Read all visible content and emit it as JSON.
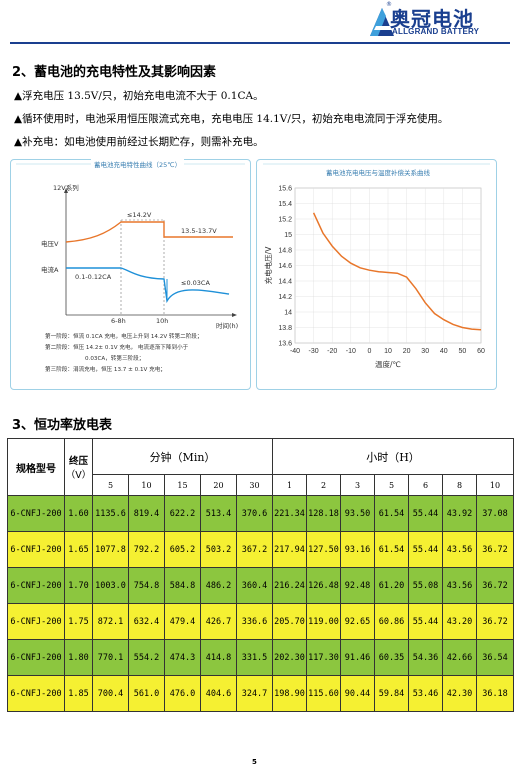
{
  "header": {
    "logo_cn": "奥冠电池",
    "logo_en": "ALLGRAND BATTERY",
    "reg_mark": "®"
  },
  "section2": {
    "title": "2、蓄电池的充电特性及其影响因素",
    "lines": [
      "▲浮充电压 13.5V/只，初始充电电流不大于 0.1CA。",
      "▲循环使用时，电池采用恒压限流式充电，充电电压 14.1V/只，初始充电电流同于浮充使用。",
      "▲补充电：如电池使用前经过长期贮存，则需补充电。"
    ]
  },
  "chart_left": {
    "title": "蓄电池充电特性曲线（25℃）",
    "series_label": "12V系列",
    "voltage_label": "电压V",
    "current_label": "电流A",
    "annot_v1": "≤14.2V",
    "annot_v2": "13.5-13.7V",
    "annot_i1": "0.1-0.12CA",
    "annot_i2": "≤0.03CA",
    "tick_6_8h": "6-8h",
    "tick_10h": "10h",
    "xlabel": "时间(h)",
    "notes": [
      "第一阶段：恒流 0.1CA 充电，电压上升到 14.2V 转第二阶段；",
      "第二阶段：恒压 14.2± 0.1V 充电，  电流逐渐下降到小于",
      "0.03CA，转第三阶段；",
      "第三阶段：涓流充电，恒压 13.7 ± 0.1V 充电；"
    ]
  },
  "chart_data": {
    "type": "line",
    "title": "蓄电池充电电压与温度补偿关系曲线",
    "xlabel": "温度/℃",
    "ylabel": "充电电压/V",
    "x_ticks": [
      -40,
      -30,
      -20,
      -10,
      0,
      10,
      20,
      30,
      40,
      50,
      60
    ],
    "y_ticks": [
      13.6,
      13.8,
      14.0,
      14.2,
      14.4,
      14.6,
      14.8,
      15.0,
      15.2,
      15.4,
      15.6
    ],
    "xlim": [
      -40,
      60
    ],
    "ylim": [
      13.6,
      15.6
    ],
    "color": "#e8762a",
    "series": [
      {
        "x": [
          -30,
          -25,
          -20,
          -15,
          -10,
          -5,
          0,
          5,
          10,
          15,
          20,
          25,
          30,
          35,
          40,
          45,
          50,
          55,
          60
        ],
        "values": [
          15.28,
          15.02,
          14.85,
          14.72,
          14.63,
          14.57,
          14.54,
          14.52,
          14.51,
          14.5,
          14.45,
          14.3,
          14.12,
          13.98,
          13.9,
          13.84,
          13.8,
          13.78,
          13.77
        ]
      }
    ]
  },
  "section3": {
    "title": "3、恒功率放电表"
  },
  "table": {
    "col_model": "规格型号",
    "col_endv": "终压",
    "col_endv_unit": "（V）",
    "group_min": "分钟（Min）",
    "group_hour": "小时（H）",
    "min_cols": [
      "5",
      "10",
      "15",
      "20",
      "30"
    ],
    "hour_cols": [
      "1",
      "2",
      "3",
      "5",
      "6",
      "8",
      "10"
    ],
    "rows": [
      [
        "6-CNFJ-200",
        "1.60",
        "1135.6",
        "819.4",
        "622.2",
        "513.4",
        "370.6",
        "221.34",
        "128.18",
        "93.50",
        "61.54",
        "55.44",
        "43.92",
        "37.08"
      ],
      [
        "6-CNFJ-200",
        "1.65",
        "1077.8",
        "792.2",
        "605.2",
        "503.2",
        "367.2",
        "217.94",
        "127.50",
        "93.16",
        "61.54",
        "55.44",
        "43.56",
        "36.72"
      ],
      [
        "6-CNFJ-200",
        "1.70",
        "1003.0",
        "754.8",
        "584.8",
        "486.2",
        "360.4",
        "216.24",
        "126.48",
        "92.48",
        "61.20",
        "55.08",
        "43.56",
        "36.72"
      ],
      [
        "6-CNFJ-200",
        "1.75",
        "872.1",
        "632.4",
        "479.4",
        "426.7",
        "336.6",
        "205.70",
        "119.00",
        "92.65",
        "60.86",
        "55.44",
        "43.20",
        "36.72"
      ],
      [
        "6-CNFJ-200",
        "1.80",
        "770.1",
        "554.2",
        "474.3",
        "414.8",
        "331.5",
        "202.30",
        "117.30",
        "91.46",
        "60.35",
        "54.36",
        "42.66",
        "36.54"
      ],
      [
        "6-CNFJ-200",
        "1.85",
        "700.4",
        "561.0",
        "476.0",
        "404.6",
        "324.7",
        "198.90",
        "115.60",
        "90.44",
        "59.84",
        "53.46",
        "42.30",
        "36.18"
      ]
    ]
  },
  "page_number": "5"
}
